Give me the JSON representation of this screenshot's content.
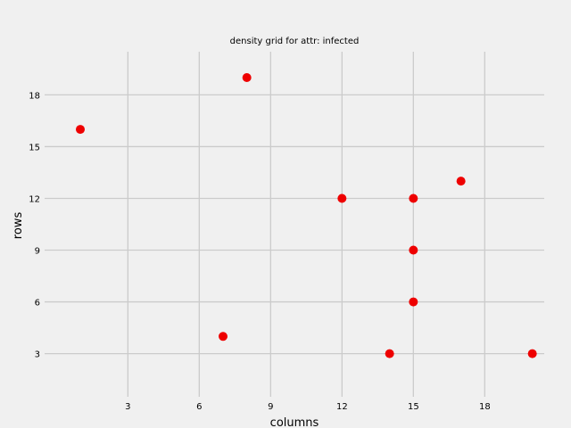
{
  "chart_data": {
    "type": "scatter",
    "title": "density grid for attr: infected",
    "xlabel": "columns",
    "ylabel": "rows",
    "xlim": [
      -0.5,
      20.5
    ],
    "ylim": [
      0.5,
      20.5
    ],
    "xticks": [
      3,
      6,
      9,
      12,
      15,
      18
    ],
    "yticks": [
      3,
      6,
      9,
      12,
      15,
      18
    ],
    "grid": true,
    "color": "#ee0000",
    "points": [
      {
        "x": 1,
        "y": 16
      },
      {
        "x": 8,
        "y": 19
      },
      {
        "x": 12,
        "y": 12
      },
      {
        "x": 15,
        "y": 12
      },
      {
        "x": 17,
        "y": 13
      },
      {
        "x": 15,
        "y": 9
      },
      {
        "x": 15,
        "y": 6
      },
      {
        "x": 7,
        "y": 4
      },
      {
        "x": 14,
        "y": 3
      },
      {
        "x": 20,
        "y": 3
      }
    ]
  }
}
